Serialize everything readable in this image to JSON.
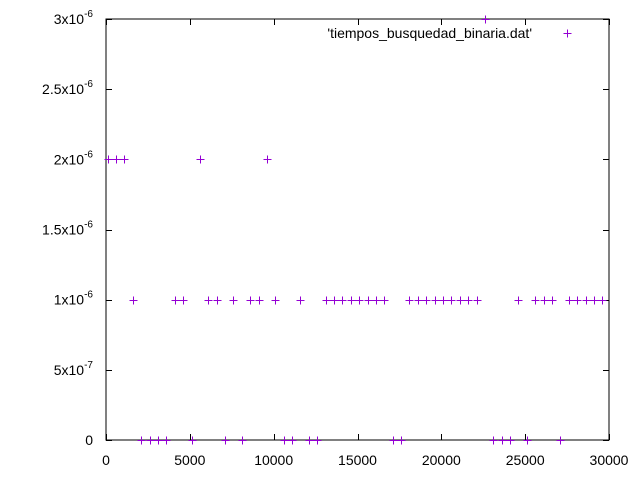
{
  "chart_data": {
    "type": "scatter",
    "title": "",
    "xlabel": "",
    "ylabel": "",
    "xlim": [
      0,
      30000
    ],
    "ylim": [
      0,
      3e-06
    ],
    "grid": false,
    "legend_position": "top-right",
    "x_ticks": [
      {
        "value": 0,
        "label": "0"
      },
      {
        "value": 5000,
        "label": "5000"
      },
      {
        "value": 10000,
        "label": "10000"
      },
      {
        "value": 15000,
        "label": "15000"
      },
      {
        "value": 20000,
        "label": "20000"
      },
      {
        "value": 25000,
        "label": "25000"
      },
      {
        "value": 30000,
        "label": "30000"
      }
    ],
    "y_ticks": [
      {
        "value": 0,
        "mantissa": "0",
        "exponent": ""
      },
      {
        "value": 5e-07,
        "mantissa": "5x10",
        "exponent": "-7"
      },
      {
        "value": 1e-06,
        "mantissa": "1x10",
        "exponent": "-6"
      },
      {
        "value": 1.5e-06,
        "mantissa": "1.5x10",
        "exponent": "-6"
      },
      {
        "value": 2e-06,
        "mantissa": "2x10",
        "exponent": "-6"
      },
      {
        "value": 2.5e-06,
        "mantissa": "2.5x10",
        "exponent": "-6"
      },
      {
        "value": 3e-06,
        "mantissa": "3x10",
        "exponent": "-6"
      }
    ],
    "series": [
      {
        "name": "'tiempos_busquedad_binaria.dat'",
        "color": "#9400d3",
        "marker": "plus",
        "points": [
          [
            100,
            2e-06
          ],
          [
            600,
            2e-06
          ],
          [
            1100,
            2e-06
          ],
          [
            1600,
            1e-06
          ],
          [
            2100,
            0
          ],
          [
            2600,
            0
          ],
          [
            3100,
            0
          ],
          [
            3600,
            0
          ],
          [
            4100,
            1e-06
          ],
          [
            4600,
            1e-06
          ],
          [
            5100,
            0
          ],
          [
            5600,
            2e-06
          ],
          [
            6100,
            1e-06
          ],
          [
            6600,
            1e-06
          ],
          [
            7100,
            0
          ],
          [
            7600,
            1e-06
          ],
          [
            8100,
            0
          ],
          [
            8600,
            1e-06
          ],
          [
            9100,
            1e-06
          ],
          [
            9600,
            2e-06
          ],
          [
            10100,
            1e-06
          ],
          [
            10600,
            0
          ],
          [
            11100,
            0
          ],
          [
            11600,
            1e-06
          ],
          [
            12100,
            0
          ],
          [
            12600,
            0
          ],
          [
            13100,
            1e-06
          ],
          [
            13600,
            1e-06
          ],
          [
            14100,
            1e-06
          ],
          [
            14600,
            1e-06
          ],
          [
            15100,
            1e-06
          ],
          [
            15600,
            1e-06
          ],
          [
            16100,
            1e-06
          ],
          [
            16600,
            1e-06
          ],
          [
            17100,
            0
          ],
          [
            17600,
            0
          ],
          [
            18100,
            1e-06
          ],
          [
            18600,
            1e-06
          ],
          [
            19100,
            1e-06
          ],
          [
            19600,
            1e-06
          ],
          [
            20100,
            1e-06
          ],
          [
            20600,
            1e-06
          ],
          [
            21100,
            1e-06
          ],
          [
            21600,
            1e-06
          ],
          [
            22100,
            1e-06
          ],
          [
            22600,
            3e-06
          ],
          [
            23100,
            0
          ],
          [
            23600,
            0
          ],
          [
            24100,
            0
          ],
          [
            24600,
            1e-06
          ],
          [
            25100,
            0
          ],
          [
            25600,
            1e-06
          ],
          [
            26100,
            1e-06
          ],
          [
            26600,
            1e-06
          ],
          [
            27100,
            0
          ],
          [
            27600,
            1e-06
          ],
          [
            28100,
            1e-06
          ],
          [
            28600,
            1e-06
          ],
          [
            29100,
            1e-06
          ],
          [
            29600,
            1e-06
          ]
        ]
      }
    ]
  }
}
